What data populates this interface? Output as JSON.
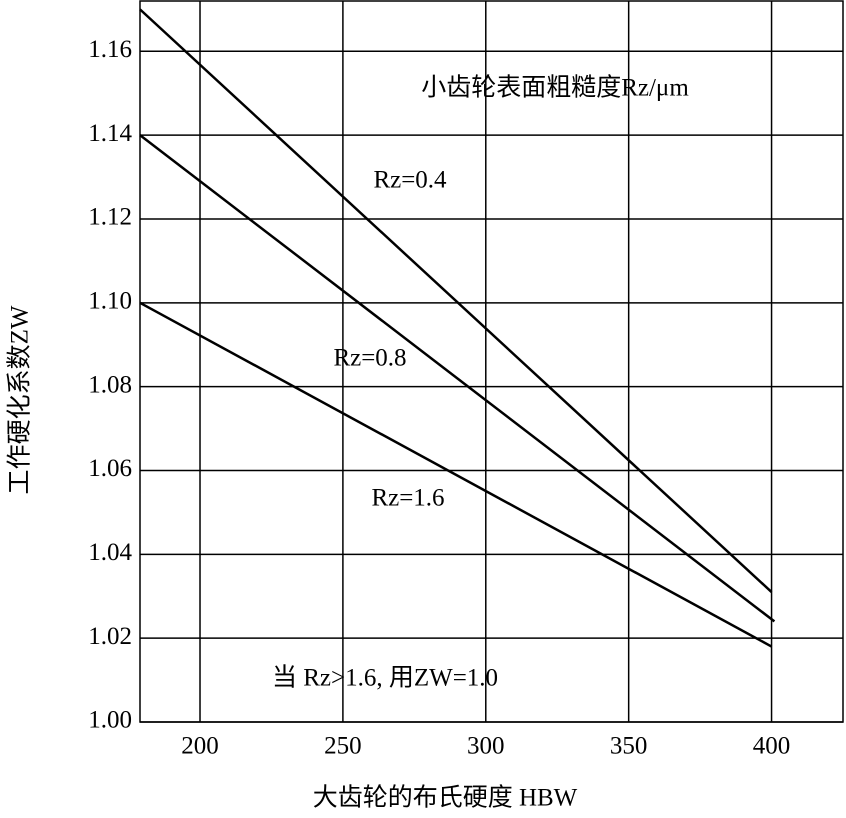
{
  "chart_data": {
    "type": "line",
    "title": "小齿轮表面粗糙度Rz/μm",
    "x_label": "大齿轮的布氏硬度  HBW",
    "y_label": "工作硬化系数ZW",
    "annotation": "当 Rz>1.6, 用ZW=1.0",
    "series": [
      {
        "name": "Rz=0.4",
        "color": "#000000",
        "x": [
          179,
          400
        ],
        "values": [
          1.17,
          1.031
        ]
      },
      {
        "name": "Rz=0.8",
        "color": "#000000",
        "x": [
          179,
          401
        ],
        "values": [
          1.14,
          1.024
        ]
      },
      {
        "name": "Rz=1.6",
        "color": "#000000",
        "x": [
          179,
          400
        ],
        "values": [
          1.1,
          1.018
        ]
      }
    ],
    "xlim": [
      179,
      425
    ],
    "ylim": [
      1.0,
      1.172
    ],
    "xticks": [
      200,
      250,
      300,
      350,
      400
    ],
    "yticks": [
      {
        "value": 1.0,
        "label": "1.00"
      },
      {
        "value": 1.02,
        "label": "1.02"
      },
      {
        "value": 1.04,
        "label": "1.04"
      },
      {
        "value": 1.06,
        "label": "1.06"
      },
      {
        "value": 1.08,
        "label": "1.08"
      },
      {
        "value": 1.1,
        "label": "1.10"
      },
      {
        "value": 1.12,
        "label": "1.12"
      },
      {
        "value": 1.14,
        "label": "1.14"
      },
      {
        "value": 1.16,
        "label": "1.16"
      }
    ],
    "grid": true
  }
}
